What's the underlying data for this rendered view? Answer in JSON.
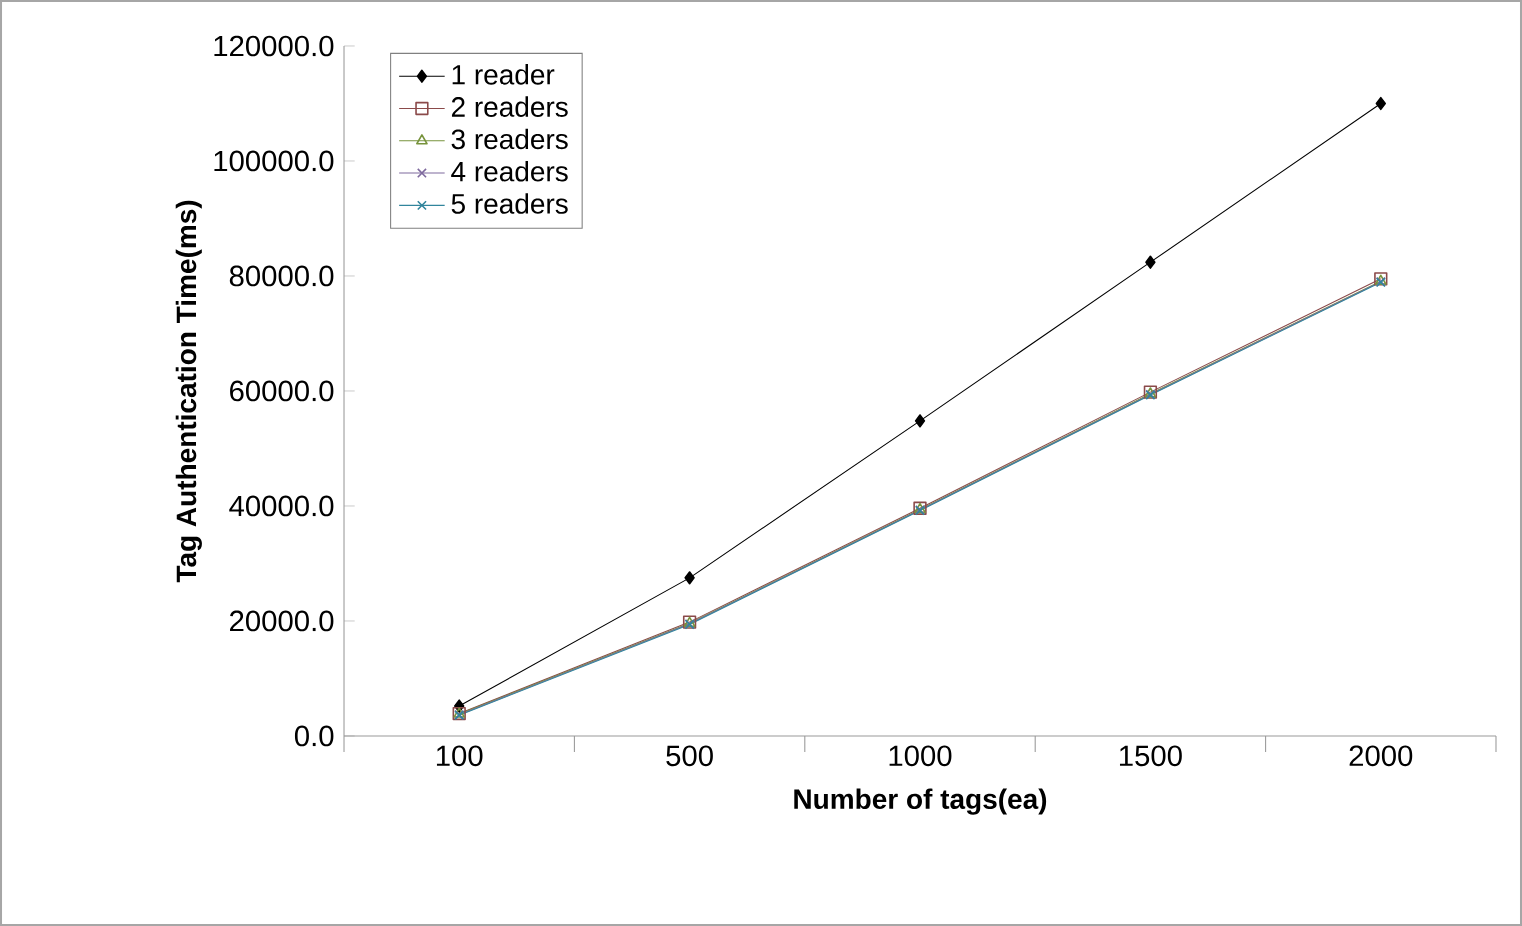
{
  "chart_data": {
    "type": "line",
    "xlabel": "Number of tags(ea)",
    "ylabel": "Tag Authentication Time(ms)",
    "categories": [
      "100",
      "500",
      "1000",
      "1500",
      "2000"
    ],
    "series": [
      {
        "name": "1 reader",
        "color": "#000000",
        "marker": "diamond",
        "values": [
          5200,
          27500,
          54800,
          82400,
          110000
        ]
      },
      {
        "name": "2 readers",
        "color": "#8b4a4a",
        "marker": "square",
        "values": [
          3900,
          19800,
          39600,
          59800,
          79500
        ]
      },
      {
        "name": "3 readers",
        "color": "#77933c",
        "marker": "triangle",
        "values": [
          3800,
          19600,
          39400,
          59500,
          79100
        ]
      },
      {
        "name": "4 readers",
        "color": "#7f6a9e",
        "marker": "cross",
        "values": [
          3700,
          19500,
          39300,
          59400,
          79000
        ]
      },
      {
        "name": "5 readers",
        "color": "#31859c",
        "marker": "cross",
        "values": [
          3600,
          19400,
          39200,
          59300,
          78900
        ]
      }
    ],
    "ylim": [
      0,
      120000
    ],
    "yticks": [
      {
        "value": 0,
        "label": "0.0"
      },
      {
        "value": 20000,
        "label": "20000.0"
      },
      {
        "value": 40000,
        "label": "40000.0"
      },
      {
        "value": 60000,
        "label": "60000.0"
      },
      {
        "value": 80000,
        "label": "80000.0"
      },
      {
        "value": 100000,
        "label": "100000.0"
      },
      {
        "value": 120000,
        "label": "120000.0"
      }
    ],
    "legend": "top left",
    "grid": false,
    "line_style": "solid"
  }
}
